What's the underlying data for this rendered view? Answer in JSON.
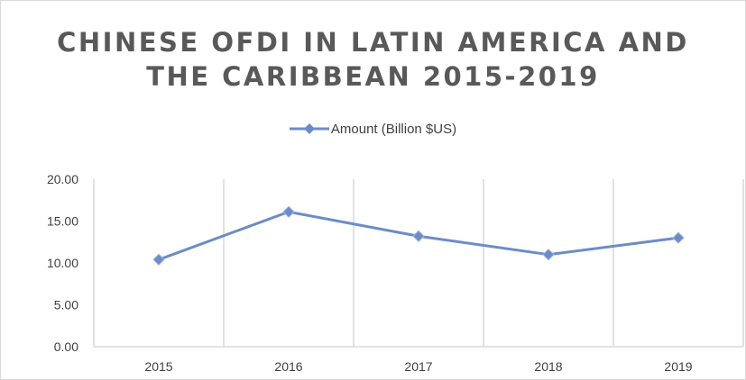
{
  "chart_data": {
    "type": "line",
    "title": "CHINESE OFDI IN LATIN AMERICA AND THE CARIBBEAN 2015-2019",
    "title_lines": [
      "CHINESE OFDI IN LATIN AMERICA AND",
      "THE CARIBBEAN 2015-2019"
    ],
    "categories": [
      "2015",
      "2016",
      "2017",
      "2018",
      "2019"
    ],
    "series": [
      {
        "name": "Amount (Billion $US)",
        "values": [
          10.4,
          16.1,
          13.2,
          11.0,
          13.0
        ],
        "color": "#6b8cc7"
      }
    ],
    "xlabel": "",
    "ylabel": "",
    "ylim": [
      0,
      20
    ],
    "yticks": [
      "0.00",
      "5.00",
      "10.00",
      "15.00",
      "20.00"
    ],
    "legend_position": "top",
    "grid": "vertical"
  }
}
